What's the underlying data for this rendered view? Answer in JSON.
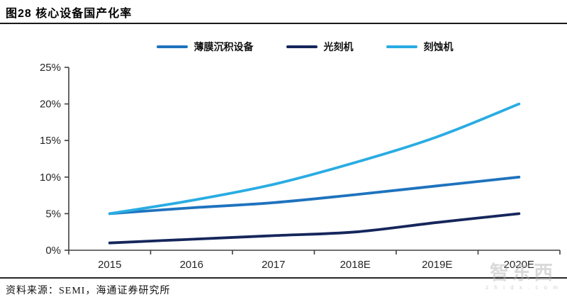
{
  "header": {
    "title": "图28  核心设备国产化率"
  },
  "source": {
    "label": "资料来源：SEMI，海通证券研究所"
  },
  "watermark": {
    "brand": "智东西",
    "site": "z h i d x . c o m"
  },
  "chart_data": {
    "type": "line",
    "title": "核心设备国产化率",
    "categories": [
      "2015",
      "2016",
      "2017",
      "2018E",
      "2019E",
      "2020E"
    ],
    "series": [
      {
        "name": "薄膜沉积设备",
        "color": "#1E73BE",
        "values": [
          5,
          5.8,
          6.5,
          7.6,
          8.8,
          10
        ]
      },
      {
        "name": "光刻机",
        "color": "#16265C",
        "values": [
          1,
          1.5,
          2,
          2.5,
          3.8,
          5
        ]
      },
      {
        "name": "刻蚀机",
        "color": "#2AACE3",
        "values": [
          5,
          6.8,
          9,
          12,
          15.5,
          20
        ]
      }
    ],
    "xlabel": "",
    "ylabel": "",
    "ylim": [
      0,
      25
    ],
    "ytick_step": 5,
    "yticks": [
      "0%",
      "5%",
      "10%",
      "15%",
      "20%",
      "25%"
    ],
    "grid": false,
    "legend_position": "top",
    "axis_color": "#404040",
    "tick_label_color": "#262626"
  }
}
